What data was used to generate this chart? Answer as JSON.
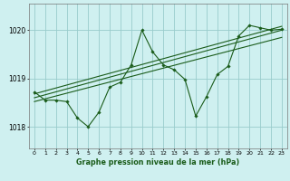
{
  "title": "Graphe pression niveau de la mer (hPa)",
  "background_color": "#cff0f0",
  "grid_color": "#99cccc",
  "line_color": "#1a5c1a",
  "x_ticks": [
    0,
    1,
    2,
    3,
    4,
    5,
    6,
    7,
    8,
    9,
    10,
    11,
    12,
    13,
    14,
    15,
    16,
    17,
    18,
    19,
    20,
    21,
    22,
    23
  ],
  "y_ticks": [
    1018,
    1019,
    1020
  ],
  "ylim": [
    1017.55,
    1020.55
  ],
  "xlim": [
    -0.5,
    23.5
  ],
  "series1": [
    1018.72,
    1018.55,
    1018.55,
    1018.52,
    1018.18,
    1018.0,
    1018.3,
    1018.82,
    1018.92,
    1019.28,
    1020.0,
    1019.55,
    1019.28,
    1019.18,
    1018.98,
    1018.22,
    1018.62,
    1019.08,
    1019.25,
    1019.88,
    1020.1,
    1020.05,
    1020.0,
    1020.02
  ],
  "trend1_x": [
    0,
    23
  ],
  "trend1_y": [
    1018.52,
    1019.85
  ],
  "trend2_x": [
    0,
    23
  ],
  "trend2_y": [
    1018.6,
    1020.0
  ],
  "trend3_x": [
    0,
    23
  ],
  "trend3_y": [
    1018.68,
    1020.08
  ]
}
